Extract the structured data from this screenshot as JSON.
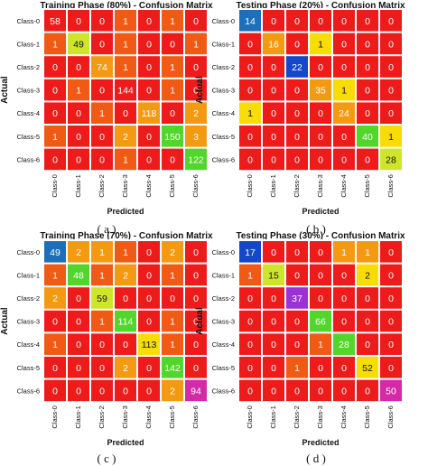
{
  "chart_data": [
    {
      "type": "heatmap",
      "title": "Training Phase (80%) - Confusion Matrix",
      "caption": "( a )",
      "xlabel": "Predicted",
      "ylabel": "Actual",
      "classes": [
        "Class-0",
        "Class-1",
        "Class-2",
        "Class-3",
        "Class-4",
        "Class-5",
        "Class-6"
      ],
      "matrix": [
        [
          58,
          0,
          0,
          1,
          0,
          1,
          0
        ],
        [
          1,
          49,
          0,
          1,
          0,
          0,
          1
        ],
        [
          0,
          0,
          74,
          1,
          0,
          1,
          0
        ],
        [
          0,
          1,
          0,
          144,
          0,
          1,
          0
        ],
        [
          0,
          0,
          1,
          0,
          118,
          0,
          2
        ],
        [
          1,
          0,
          0,
          2,
          0,
          150,
          3
        ],
        [
          0,
          0,
          0,
          1,
          0,
          0,
          122
        ]
      ]
    },
    {
      "type": "heatmap",
      "title": "Testing Phase (20%) - Confusion Matrix",
      "caption": "( b )",
      "xlabel": "Predicted",
      "ylabel": "Actual",
      "classes": [
        "Class-0",
        "Class-1",
        "Class-2",
        "Class-3",
        "Class-4",
        "Class-5",
        "Class-6"
      ],
      "matrix": [
        [
          14,
          0,
          0,
          0,
          0,
          0,
          0
        ],
        [
          0,
          16,
          0,
          1,
          0,
          0,
          0
        ],
        [
          0,
          0,
          22,
          0,
          0,
          0,
          0
        ],
        [
          0,
          0,
          0,
          35,
          1,
          0,
          0
        ],
        [
          1,
          0,
          0,
          0,
          24,
          0,
          0
        ],
        [
          0,
          0,
          0,
          0,
          0,
          40,
          1
        ],
        [
          0,
          0,
          0,
          0,
          0,
          0,
          28
        ]
      ]
    },
    {
      "type": "heatmap",
      "title": "Training Phase (70%) - Confusion Matrix",
      "caption": "( c )",
      "xlabel": "Predicted",
      "ylabel": "Actual",
      "classes": [
        "Class-0",
        "Class-1",
        "Class-2",
        "Class-3",
        "Class-4",
        "Class-5",
        "Class-6"
      ],
      "matrix": [
        [
          49,
          2,
          1,
          1,
          0,
          2,
          0
        ],
        [
          1,
          48,
          1,
          2,
          0,
          1,
          0
        ],
        [
          2,
          0,
          59,
          0,
          0,
          0,
          0
        ],
        [
          0,
          0,
          1,
          114,
          0,
          1,
          0
        ],
        [
          1,
          0,
          0,
          0,
          113,
          1,
          0
        ],
        [
          0,
          0,
          0,
          2,
          0,
          142,
          0
        ],
        [
          0,
          0,
          0,
          0,
          0,
          2,
          94
        ]
      ]
    },
    {
      "type": "heatmap",
      "title": "Testing Phase (30%) - Confusion Matrix",
      "caption": "( d )",
      "xlabel": "Predicted",
      "ylabel": "Actual",
      "classes": [
        "Class-0",
        "Class-1",
        "Class-2",
        "Class-3",
        "Class-4",
        "Class-5",
        "Class-6"
      ],
      "matrix": [
        [
          17,
          0,
          0,
          0,
          1,
          1,
          0
        ],
        [
          1,
          15,
          0,
          0,
          0,
          2,
          0
        ],
        [
          0,
          0,
          37,
          0,
          0,
          0,
          0
        ],
        [
          0,
          0,
          0,
          66,
          0,
          0,
          0
        ],
        [
          0,
          0,
          0,
          1,
          28,
          0,
          0
        ],
        [
          0,
          0,
          1,
          0,
          0,
          52,
          0
        ],
        [
          0,
          0,
          0,
          0,
          0,
          0,
          50
        ]
      ]
    }
  ],
  "colors": {
    "zero": "#ee1b1b",
    "low": "#f05a14",
    "orange": "#f39a12",
    "yellow": "#f7dc05",
    "yellowgreen": "#cfe52a",
    "green": "#52d62b",
    "teal": "#23b98e",
    "blue": "#1547c9",
    "blue2": "#1c6fb8",
    "purple": "#9a32d6",
    "magenta": "#d52aa8",
    "grid": "#ffffff"
  }
}
